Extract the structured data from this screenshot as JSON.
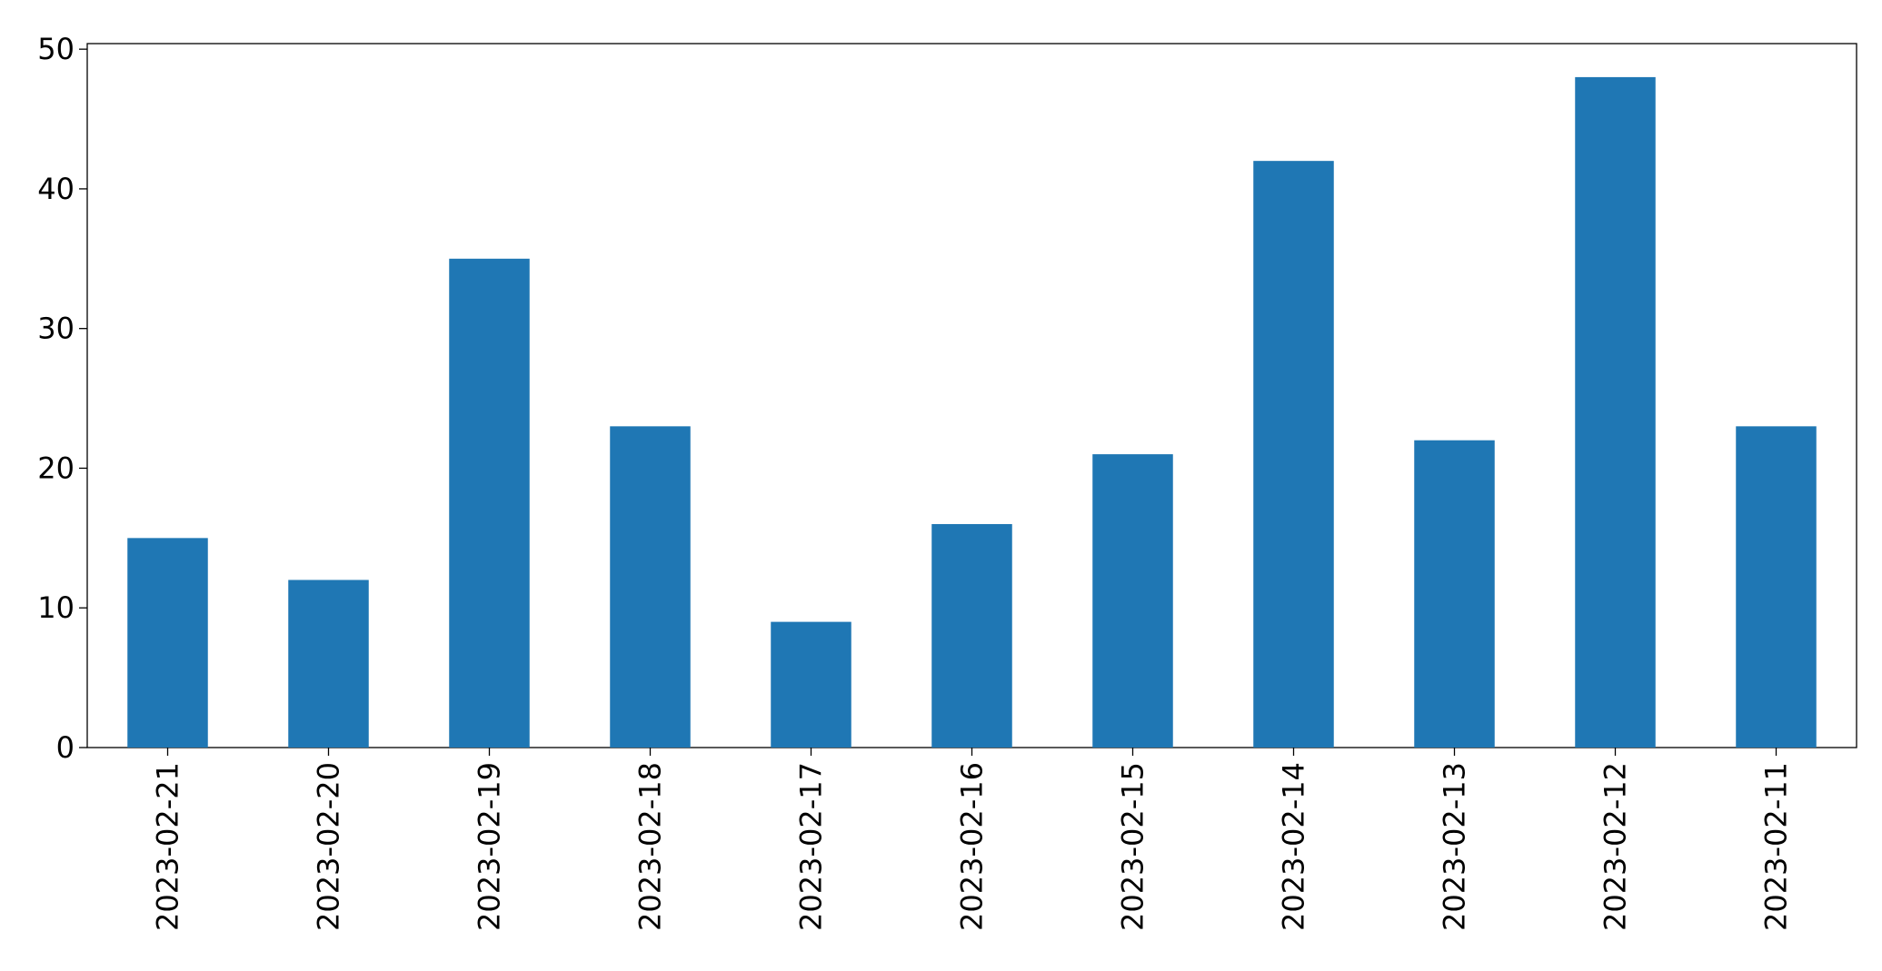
{
  "chart_data": {
    "type": "bar",
    "categories": [
      "2023-02-21",
      "2023-02-20",
      "2023-02-19",
      "2023-02-18",
      "2023-02-17",
      "2023-02-16",
      "2023-02-15",
      "2023-02-14",
      "2023-02-13",
      "2023-02-12",
      "2023-02-11"
    ],
    "values": [
      15,
      12,
      35,
      23,
      9,
      16,
      21,
      42,
      22,
      48,
      23
    ],
    "color": "#1f77b4",
    "ylim": [
      0,
      50.4
    ],
    "yticks": [
      0,
      10,
      20,
      30,
      40,
      50
    ],
    "grid": false
  }
}
